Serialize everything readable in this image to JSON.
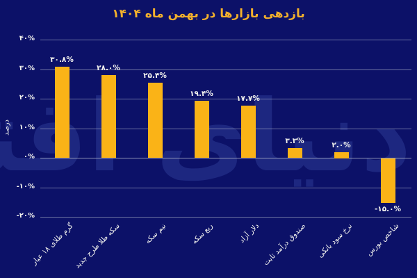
{
  "watermark": "دنیای اقتصاد",
  "colors": {
    "background": "#0c1168",
    "bar": "#fab317",
    "title_text": "#f2b02c",
    "tick_text": "#f2f2ee",
    "grid": "#aab0c8",
    "watermark_text": "#5b74d8"
  },
  "chart_data": {
    "type": "bar",
    "title": "بازدهی بازارها در بهمن ماه ۱۴۰۴",
    "ylabel": "درصد",
    "xlabel": "",
    "ylim": [
      -20,
      40
    ],
    "yticks": [
      40,
      30,
      20,
      10,
      0,
      -10,
      -20
    ],
    "ytick_labels": [
      "۴۰%",
      "۳۰%",
      "۲۰%",
      "۱۰%",
      "۰%",
      "-۱۰%",
      "-۲۰%"
    ],
    "grid": true,
    "legend_position": "none",
    "categories": [
      "گرم طلای ۱۸ عیار",
      "سکه طلا طرح جدید",
      "نیم سکه",
      "ربع سکه",
      "دلار آزاد",
      "صندوق درآمد ثابت",
      "نرخ سود بانکی",
      "شاخص بورس"
    ],
    "values": [
      30.8,
      28.0,
      25.4,
      19.4,
      17.7,
      3.3,
      2.0,
      -15.0
    ],
    "value_labels": [
      "۳۰.۸%",
      "۲۸.۰%",
      "۲۵.۴%",
      "۱۹.۴%",
      "۱۷.۷%",
      "۳.۳%",
      "۲.۰%",
      "-۱۵.۰%"
    ]
  }
}
